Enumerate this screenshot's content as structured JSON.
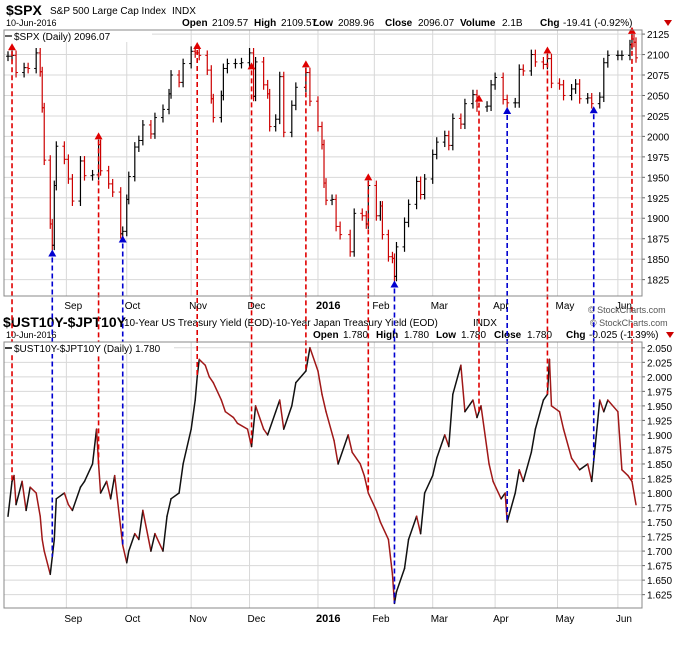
{
  "chart_data": [
    {
      "type": "ohlc",
      "header": {
        "symbol": "$SPX",
        "name": "S&P 500 Large Cap Index",
        "exchange": "INDX",
        "date": "10-Jun-2016",
        "open_label": "Open",
        "open": "2109.57",
        "high_label": "High",
        "high": "2109.57",
        "low_label": "Low",
        "low": "2089.96",
        "close_label": "Close",
        "close": "2096.07",
        "volume_label": "Volume",
        "volume": "2.1B",
        "chg_label": "Chg",
        "chg": "-19.41 (-0.92%)",
        "copyright": "© StockCharts.com"
      },
      "legend": "$SPX (Daily) 2096.07",
      "ylim": [
        1805,
        2130
      ],
      "yticks": [
        1825,
        1850,
        1875,
        1900,
        1925,
        1950,
        1975,
        2000,
        2025,
        2050,
        2075,
        2100,
        2125
      ],
      "x_tick_labels": [
        "Sep",
        "Oct",
        "Nov",
        "Dec",
        "2016",
        "Feb",
        "Mar",
        "Apr",
        "May",
        "Jun"
      ],
      "x_tick_label_dates": [
        "2015-09-01",
        "2015-10-01",
        "2015-11-02",
        "2015-12-01",
        "2016-01-04",
        "2016-02-01",
        "2016-03-01",
        "2016-04-01",
        "2016-05-02",
        "2016-06-01"
      ],
      "x_range": [
        "2015-08-03",
        "2016-06-10"
      ],
      "closes": [
        [
          "2015-08-03",
          2098
        ],
        [
          "2015-08-05",
          2099
        ],
        [
          "2015-08-07",
          2078
        ],
        [
          "2015-08-11",
          2084
        ],
        [
          "2015-08-13",
          2083
        ],
        [
          "2015-08-17",
          2102
        ],
        [
          "2015-08-19",
          2079
        ],
        [
          "2015-08-20",
          2035
        ],
        [
          "2015-08-21",
          1971
        ],
        [
          "2015-08-24",
          1893
        ],
        [
          "2015-08-25",
          1867
        ],
        [
          "2015-08-26",
          1940
        ],
        [
          "2015-08-27",
          1988
        ],
        [
          "2015-08-31",
          1972
        ],
        [
          "2015-09-02",
          1948
        ],
        [
          "2015-09-04",
          1921
        ],
        [
          "2015-09-08",
          1970
        ],
        [
          "2015-09-10",
          1952
        ],
        [
          "2015-09-14",
          1953
        ],
        [
          "2015-09-17",
          1990
        ],
        [
          "2015-09-18",
          1958
        ],
        [
          "2015-09-22",
          1942
        ],
        [
          "2015-09-24",
          1932
        ],
        [
          "2015-09-28",
          1881
        ],
        [
          "2015-09-29",
          1884
        ],
        [
          "2015-10-01",
          1923
        ],
        [
          "2015-10-02",
          1951
        ],
        [
          "2015-10-05",
          1987
        ],
        [
          "2015-10-07",
          1995
        ],
        [
          "2015-10-09",
          2014
        ],
        [
          "2015-10-13",
          2003
        ],
        [
          "2015-10-15",
          2023
        ],
        [
          "2015-10-19",
          2033
        ],
        [
          "2015-10-22",
          2052
        ],
        [
          "2015-10-23",
          2075
        ],
        [
          "2015-10-27",
          2066
        ],
        [
          "2015-10-29",
          2089
        ],
        [
          "2015-11-02",
          2104
        ],
        [
          "2015-11-04",
          2102
        ],
        [
          "2015-11-06",
          2099
        ],
        [
          "2015-11-10",
          2081
        ],
        [
          "2015-11-12",
          2046
        ],
        [
          "2015-11-13",
          2023
        ],
        [
          "2015-11-17",
          2050
        ],
        [
          "2015-11-18",
          2083
        ],
        [
          "2015-11-20",
          2089
        ],
        [
          "2015-11-24",
          2089
        ],
        [
          "2015-11-27",
          2090
        ],
        [
          "2015-12-01",
          2102
        ],
        [
          "2015-12-03",
          2049
        ],
        [
          "2015-12-04",
          2091
        ],
        [
          "2015-12-08",
          2063
        ],
        [
          "2015-12-10",
          2052
        ],
        [
          "2015-12-11",
          2012
        ],
        [
          "2015-12-14",
          2021
        ],
        [
          "2015-12-16",
          2073
        ],
        [
          "2015-12-18",
          2005
        ],
        [
          "2015-12-22",
          2038
        ],
        [
          "2015-12-24",
          2060
        ],
        [
          "2015-12-29",
          2078
        ],
        [
          "2015-12-31",
          2043
        ],
        [
          "2016-01-04",
          2012
        ],
        [
          "2016-01-06",
          1990
        ],
        [
          "2016-01-07",
          1943
        ],
        [
          "2016-01-08",
          1922
        ],
        [
          "2016-01-11",
          1923
        ],
        [
          "2016-01-13",
          1890
        ],
        [
          "2016-01-15",
          1880
        ],
        [
          "2016-01-20",
          1859
        ],
        [
          "2016-01-22",
          1906
        ],
        [
          "2016-01-26",
          1903
        ],
        [
          "2016-01-28",
          1893
        ],
        [
          "2016-01-29",
          1940
        ],
        [
          "2016-02-02",
          1903
        ],
        [
          "2016-02-04",
          1915
        ],
        [
          "2016-02-05",
          1880
        ],
        [
          "2016-02-08",
          1853
        ],
        [
          "2016-02-10",
          1851
        ],
        [
          "2016-02-11",
          1829
        ],
        [
          "2016-02-12",
          1865
        ],
        [
          "2016-02-16",
          1895
        ],
        [
          "2016-02-18",
          1917
        ],
        [
          "2016-02-22",
          1945
        ],
        [
          "2016-02-24",
          1929
        ],
        [
          "2016-02-26",
          1948
        ],
        [
          "2016-03-01",
          1978
        ],
        [
          "2016-03-03",
          1993
        ],
        [
          "2016-03-07",
          2001
        ],
        [
          "2016-03-09",
          1989
        ],
        [
          "2016-03-11",
          2022
        ],
        [
          "2016-03-15",
          2015
        ],
        [
          "2016-03-17",
          2040
        ],
        [
          "2016-03-21",
          2051
        ],
        [
          "2016-03-23",
          2036
        ],
        [
          "2016-03-28",
          2037
        ],
        [
          "2016-03-30",
          2063
        ],
        [
          "2016-04-01",
          2072
        ],
        [
          "2016-04-05",
          2045
        ],
        [
          "2016-04-07",
          2041
        ],
        [
          "2016-04-11",
          2041
        ],
        [
          "2016-04-13",
          2082
        ],
        [
          "2016-04-15",
          2080
        ],
        [
          "2016-04-19",
          2100
        ],
        [
          "2016-04-21",
          2091
        ],
        [
          "2016-04-25",
          2088
        ],
        [
          "2016-04-27",
          2095
        ],
        [
          "2016-04-29",
          2065
        ],
        [
          "2016-05-03",
          2063
        ],
        [
          "2016-05-05",
          2050
        ],
        [
          "2016-05-09",
          2058
        ],
        [
          "2016-05-11",
          2064
        ],
        [
          "2016-05-13",
          2046
        ],
        [
          "2016-05-17",
          2047
        ],
        [
          "2016-05-19",
          2040
        ],
        [
          "2016-05-23",
          2048
        ],
        [
          "2016-05-25",
          2090
        ],
        [
          "2016-05-27",
          2099
        ],
        [
          "2016-06-01",
          2099
        ],
        [
          "2016-06-03",
          2099
        ],
        [
          "2016-06-07",
          2112
        ],
        [
          "2016-06-08",
          2119
        ],
        [
          "2016-06-09",
          2115
        ],
        [
          "2016-06-10",
          2096
        ]
      ],
      "markers": [
        {
          "date": "2015-08-05",
          "direction": "down",
          "color": "#e00000"
        },
        {
          "date": "2015-08-25",
          "direction": "up",
          "color": "#0000d0"
        },
        {
          "date": "2015-09-17",
          "direction": "down",
          "color": "#e00000"
        },
        {
          "date": "2015-09-29",
          "direction": "up",
          "color": "#0000d0"
        },
        {
          "date": "2015-11-05",
          "direction": "down",
          "color": "#e00000"
        },
        {
          "date": "2015-12-02",
          "direction": "down",
          "color": "#e00000"
        },
        {
          "date": "2015-12-29",
          "direction": "down",
          "color": "#e00000"
        },
        {
          "date": "2016-01-29",
          "direction": "down",
          "color": "#e00000"
        },
        {
          "date": "2016-02-11",
          "direction": "up",
          "color": "#0000d0"
        },
        {
          "date": "2016-03-24",
          "direction": "down",
          "color": "#e00000"
        },
        {
          "date": "2016-04-07",
          "direction": "up",
          "color": "#0000d0"
        },
        {
          "date": "2016-04-27",
          "direction": "down",
          "color": "#e00000"
        },
        {
          "date": "2016-05-20",
          "direction": "up",
          "color": "#0000d0"
        },
        {
          "date": "2016-06-08",
          "direction": "down",
          "color": "#e00000"
        }
      ]
    },
    {
      "type": "line",
      "header": {
        "symbol": "$UST10Y-$JPT10Y",
        "name": "10-Year US Treasury Yield (EOD)-10-Year Japan Treasury Yield (EOD)",
        "exchange": "INDX",
        "date": "10-Jun-2016",
        "open_label": "Open",
        "open": "1.780",
        "high_label": "High",
        "high": "1.780",
        "low_label": "Low",
        "low": "1.780",
        "close_label": "Close",
        "close": "1.780",
        "chg_label": "Chg",
        "chg": "-0.025 (-1.39%)",
        "copyright": "© StockCharts.com"
      },
      "legend": "$UST10Y-$JPT10Y (Daily) 1.780",
      "ylim": [
        1.602,
        2.06
      ],
      "yticks": [
        1.625,
        1.65,
        1.675,
        1.7,
        1.725,
        1.75,
        1.775,
        1.8,
        1.825,
        1.85,
        1.875,
        1.9,
        1.925,
        1.95,
        1.975,
        2.0,
        2.025,
        2.05
      ],
      "ytick_labels": [
        "1.625",
        "1.650",
        "1.675",
        "1.700",
        "1.725",
        "1.750",
        "1.775",
        "1.800",
        "1.825",
        "1.850",
        "1.875",
        "1.900",
        "1.925",
        "1.950",
        "1.975",
        "2.000",
        "2.025",
        "2.050"
      ],
      "x_tick_labels": [
        "Sep",
        "Oct",
        "Nov",
        "Dec",
        "2016",
        "Feb",
        "Mar",
        "Apr",
        "May",
        "Jun"
      ],
      "x_tick_label_dates": [
        "2015-09-01",
        "2015-10-01",
        "2015-11-02",
        "2015-12-01",
        "2016-01-04",
        "2016-02-01",
        "2016-03-01",
        "2016-04-01",
        "2016-05-02",
        "2016-06-01"
      ],
      "x_range": [
        "2015-08-03",
        "2016-06-10"
      ],
      "points": [
        [
          "2015-08-03",
          1.76
        ],
        [
          "2015-08-05",
          1.82
        ],
        [
          "2015-08-06",
          1.83
        ],
        [
          "2015-08-07",
          1.78
        ],
        [
          "2015-08-10",
          1.82
        ],
        [
          "2015-08-12",
          1.77
        ],
        [
          "2015-08-14",
          1.81
        ],
        [
          "2015-08-17",
          1.8
        ],
        [
          "2015-08-19",
          1.76
        ],
        [
          "2015-08-20",
          1.72
        ],
        [
          "2015-08-21",
          1.7
        ],
        [
          "2015-08-24",
          1.66
        ],
        [
          "2015-08-26",
          1.72
        ],
        [
          "2015-08-27",
          1.79
        ],
        [
          "2015-08-31",
          1.8
        ],
        [
          "2015-09-02",
          1.78
        ],
        [
          "2015-09-04",
          1.77
        ],
        [
          "2015-09-08",
          1.81
        ],
        [
          "2015-09-10",
          1.82
        ],
        [
          "2015-09-14",
          1.85
        ],
        [
          "2015-09-16",
          1.91
        ],
        [
          "2015-09-17",
          1.85
        ],
        [
          "2015-09-18",
          1.8
        ],
        [
          "2015-09-21",
          1.82
        ],
        [
          "2015-09-23",
          1.79
        ],
        [
          "2015-09-25",
          1.83
        ],
        [
          "2015-09-29",
          1.71
        ],
        [
          "2015-10-01",
          1.68
        ],
        [
          "2015-10-02",
          1.7
        ],
        [
          "2015-10-05",
          1.73
        ],
        [
          "2015-10-07",
          1.72
        ],
        [
          "2015-10-09",
          1.77
        ],
        [
          "2015-10-13",
          1.7
        ],
        [
          "2015-10-15",
          1.73
        ],
        [
          "2015-10-19",
          1.7
        ],
        [
          "2015-10-21",
          1.76
        ],
        [
          "2015-10-23",
          1.79
        ],
        [
          "2015-10-27",
          1.8
        ],
        [
          "2015-10-29",
          1.85
        ],
        [
          "2015-11-02",
          1.91
        ],
        [
          "2015-11-04",
          1.96
        ],
        [
          "2015-11-05",
          2.0
        ],
        [
          "2015-11-06",
          2.03
        ],
        [
          "2015-11-09",
          2.02
        ],
        [
          "2015-11-11",
          2.0
        ],
        [
          "2015-11-13",
          1.99
        ],
        [
          "2015-11-17",
          1.96
        ],
        [
          "2015-11-19",
          1.94
        ],
        [
          "2015-11-23",
          1.93
        ],
        [
          "2015-11-25",
          1.92
        ],
        [
          "2015-11-30",
          1.91
        ],
        [
          "2015-12-02",
          1.88
        ],
        [
          "2015-12-04",
          1.95
        ],
        [
          "2015-12-08",
          1.91
        ],
        [
          "2015-12-10",
          1.9
        ],
        [
          "2015-12-14",
          1.94
        ],
        [
          "2015-12-16",
          1.96
        ],
        [
          "2015-12-18",
          1.91
        ],
        [
          "2015-12-22",
          1.95
        ],
        [
          "2015-12-24",
          1.99
        ],
        [
          "2015-12-29",
          2.01
        ],
        [
          "2015-12-31",
          2.05
        ],
        [
          "2016-01-04",
          2.01
        ],
        [
          "2016-01-06",
          1.97
        ],
        [
          "2016-01-08",
          1.94
        ],
        [
          "2016-01-12",
          1.89
        ],
        [
          "2016-01-14",
          1.85
        ],
        [
          "2016-01-19",
          1.9
        ],
        [
          "2016-01-21",
          1.87
        ],
        [
          "2016-01-25",
          1.85
        ],
        [
          "2016-01-27",
          1.83
        ],
        [
          "2016-01-29",
          1.8
        ],
        [
          "2016-02-02",
          1.77
        ],
        [
          "2016-02-04",
          1.75
        ],
        [
          "2016-02-08",
          1.72
        ],
        [
          "2016-02-10",
          1.66
        ],
        [
          "2016-02-11",
          1.61
        ],
        [
          "2016-02-12",
          1.63
        ],
        [
          "2016-02-16",
          1.67
        ],
        [
          "2016-02-18",
          1.72
        ],
        [
          "2016-02-22",
          1.76
        ],
        [
          "2016-02-24",
          1.73
        ],
        [
          "2016-02-26",
          1.8
        ],
        [
          "2016-03-01",
          1.83
        ],
        [
          "2016-03-03",
          1.86
        ],
        [
          "2016-03-07",
          1.9
        ],
        [
          "2016-03-09",
          1.88
        ],
        [
          "2016-03-11",
          1.97
        ],
        [
          "2016-03-15",
          2.02
        ],
        [
          "2016-03-17",
          1.94
        ],
        [
          "2016-03-21",
          1.96
        ],
        [
          "2016-03-23",
          1.93
        ],
        [
          "2016-03-25",
          1.95
        ],
        [
          "2016-03-29",
          1.85
        ],
        [
          "2016-03-31",
          1.82
        ],
        [
          "2016-04-04",
          1.79
        ],
        [
          "2016-04-06",
          1.8
        ],
        [
          "2016-04-07",
          1.75
        ],
        [
          "2016-04-11",
          1.8
        ],
        [
          "2016-04-13",
          1.84
        ],
        [
          "2016-04-15",
          1.82
        ],
        [
          "2016-04-19",
          1.87
        ],
        [
          "2016-04-21",
          1.91
        ],
        [
          "2016-04-25",
          1.96
        ],
        [
          "2016-04-27",
          1.97
        ],
        [
          "2016-04-28",
          2.03
        ],
        [
          "2016-04-29",
          1.95
        ],
        [
          "2016-05-03",
          1.94
        ],
        [
          "2016-05-05",
          1.91
        ],
        [
          "2016-05-09",
          1.86
        ],
        [
          "2016-05-11",
          1.85
        ],
        [
          "2016-05-13",
          1.84
        ],
        [
          "2016-05-17",
          1.85
        ],
        [
          "2016-05-19",
          1.82
        ],
        [
          "2016-05-23",
          1.96
        ],
        [
          "2016-05-25",
          1.94
        ],
        [
          "2016-05-27",
          1.96
        ],
        [
          "2016-06-01",
          1.94
        ],
        [
          "2016-06-03",
          1.84
        ],
        [
          "2016-06-06",
          1.83
        ],
        [
          "2016-06-08",
          1.82
        ],
        [
          "2016-06-09",
          1.8
        ],
        [
          "2016-06-10",
          1.78
        ]
      ]
    }
  ]
}
